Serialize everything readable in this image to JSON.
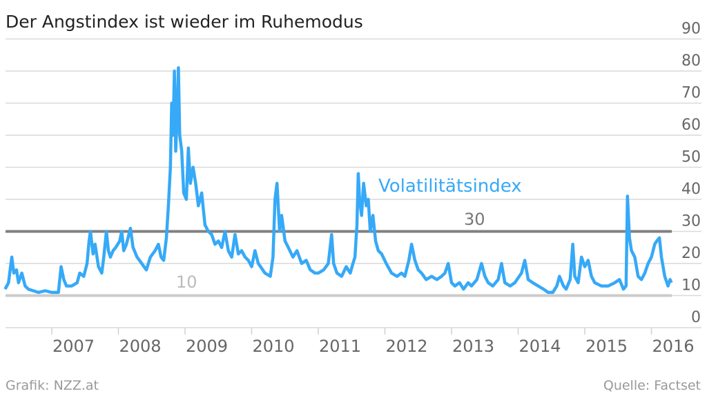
{
  "chart_data": {
    "type": "line",
    "title": "Der Angstindex ist wieder im Ruhemodus",
    "xlabel": "",
    "ylabel": "",
    "ylim": [
      0,
      90
    ],
    "xlim": [
      2006.3,
      2016.3
    ],
    "grid": true,
    "yticks": [
      "0",
      "10",
      "20",
      "30",
      "40",
      "50",
      "60",
      "70",
      "80",
      "90"
    ],
    "xticks": [
      {
        "label": "2007",
        "value": 2007
      },
      {
        "label": "2008",
        "value": 2008
      },
      {
        "label": "2009",
        "value": 2009
      },
      {
        "label": "2010",
        "value": 2010
      },
      {
        "label": "2011",
        "value": 2011
      },
      {
        "label": "2012",
        "value": 2012
      },
      {
        "label": "2013",
        "value": 2013
      },
      {
        "label": "2014",
        "value": 2014
      },
      {
        "label": "2015",
        "value": 2015
      },
      {
        "label": "2016",
        "value": 2016
      }
    ],
    "reference_lines": [
      {
        "value": 30,
        "label": "30",
        "color": "#808080"
      },
      {
        "value": 10,
        "label": "10",
        "color": "#cccccc"
      }
    ],
    "series": [
      {
        "name": "Volatilitätsindex",
        "color": "#36a9f7",
        "x": [
          2006.3,
          2006.35,
          2006.4,
          2006.43,
          2006.47,
          2006.5,
          2006.55,
          2006.6,
          2006.65,
          2006.72,
          2006.8,
          2006.9,
          2007.0,
          2007.1,
          2007.14,
          2007.18,
          2007.22,
          2007.3,
          2007.38,
          2007.42,
          2007.48,
          2007.53,
          2007.56,
          2007.58,
          2007.62,
          2007.65,
          2007.7,
          2007.75,
          2007.78,
          2007.82,
          2007.85,
          2007.88,
          2007.92,
          2007.96,
          2008.02,
          2008.05,
          2008.08,
          2008.12,
          2008.18,
          2008.22,
          2008.28,
          2008.35,
          2008.42,
          2008.48,
          2008.55,
          2008.6,
          2008.64,
          2008.68,
          2008.72,
          2008.75,
          2008.78,
          2008.8,
          2008.82,
          2008.84,
          2008.86,
          2008.88,
          2008.9,
          2008.92,
          2008.95,
          2008.98,
          2009.02,
          2009.05,
          2009.08,
          2009.12,
          2009.16,
          2009.2,
          2009.25,
          2009.3,
          2009.35,
          2009.4,
          2009.45,
          2009.5,
          2009.55,
          2009.6,
          2009.65,
          2009.7,
          2009.75,
          2009.8,
          2009.85,
          2009.9,
          2009.95,
          2010.0,
          2010.05,
          2010.1,
          2010.2,
          2010.28,
          2010.32,
          2010.35,
          2010.38,
          2010.42,
          2010.45,
          2010.5,
          2010.55,
          2010.62,
          2010.68,
          2010.75,
          2010.82,
          2010.88,
          2010.95,
          2011.0,
          2011.08,
          2011.15,
          2011.2,
          2011.23,
          2011.28,
          2011.35,
          2011.42,
          2011.48,
          2011.52,
          2011.55,
          2011.58,
          2011.6,
          2011.62,
          2011.65,
          2011.68,
          2011.72,
          2011.75,
          2011.78,
          2011.82,
          2011.86,
          2011.9,
          2011.95,
          2012.02,
          2012.1,
          2012.18,
          2012.25,
          2012.3,
          2012.36,
          2012.4,
          2012.45,
          2012.5,
          2012.55,
          2012.62,
          2012.7,
          2012.78,
          2012.85,
          2012.9,
          2012.95,
          2013.0,
          2013.05,
          2013.12,
          2013.18,
          2013.25,
          2013.3,
          2013.38,
          2013.45,
          2013.5,
          2013.55,
          2013.62,
          2013.7,
          2013.75,
          2013.8,
          2013.88,
          2013.95,
          2014.05,
          2014.1,
          2014.15,
          2014.22,
          2014.3,
          2014.38,
          2014.45,
          2014.52,
          2014.58,
          2014.62,
          2014.68,
          2014.72,
          2014.78,
          2014.82,
          2014.85,
          2014.9,
          2014.95,
          2015.0,
          2015.05,
          2015.1,
          2015.15,
          2015.25,
          2015.35,
          2015.45,
          2015.52,
          2015.58,
          2015.62,
          2015.64,
          2015.67,
          2015.7,
          2015.75,
          2015.8,
          2015.85,
          2015.9,
          2015.95,
          2016.0,
          2016.05,
          2016.08,
          2016.12,
          2016.15,
          2016.2,
          2016.25,
          2016.28,
          2016.3
        ],
        "values": [
          12,
          14,
          22,
          17,
          18,
          14,
          17,
          13,
          12,
          11.5,
          11,
          11.5,
          11,
          11,
          19,
          15,
          13,
          13,
          14,
          17,
          16,
          20,
          27,
          30,
          23,
          26,
          19,
          17,
          22,
          30,
          24,
          22,
          24,
          25,
          27,
          30,
          24,
          26,
          31,
          25,
          22,
          20,
          18,
          22,
          24,
          26,
          22,
          21,
          28,
          38,
          50,
          70,
          60,
          80,
          55,
          65,
          81,
          60,
          55,
          42,
          40,
          56,
          45,
          50,
          45,
          38,
          42,
          32,
          30,
          29,
          26,
          27,
          25,
          30,
          24,
          22,
          29,
          23,
          24,
          22,
          21,
          19,
          24,
          20,
          17,
          16,
          22,
          40,
          45,
          30,
          35,
          27,
          25,
          22,
          24,
          20,
          21,
          18,
          17,
          17,
          18,
          20,
          29,
          20,
          17,
          16,
          19,
          17,
          20,
          22,
          32,
          48,
          40,
          35,
          45,
          38,
          40,
          30,
          35,
          27,
          24,
          23,
          20,
          17,
          16,
          17,
          16,
          21,
          26,
          21,
          18,
          17,
          15,
          16,
          15,
          16,
          17,
          20,
          14,
          13,
          14,
          12,
          14,
          13,
          15,
          20,
          16,
          14,
          13,
          15,
          20,
          14,
          13,
          14,
          17,
          21,
          15,
          14,
          13,
          12,
          11,
          11,
          13,
          16,
          13,
          12,
          15,
          26,
          16,
          14,
          22,
          19,
          21,
          16,
          14,
          13,
          13,
          14,
          15,
          12,
          13,
          41,
          28,
          24,
          22,
          16,
          15,
          17,
          20,
          22,
          26,
          27,
          28,
          22,
          16,
          13,
          15,
          14
        ]
      }
    ],
    "annotations": [
      "Volatilitätsindex",
      "30",
      "10"
    ]
  },
  "footer": {
    "left": "Grafik: NZZ.at",
    "right": "Quelle: Factset"
  }
}
